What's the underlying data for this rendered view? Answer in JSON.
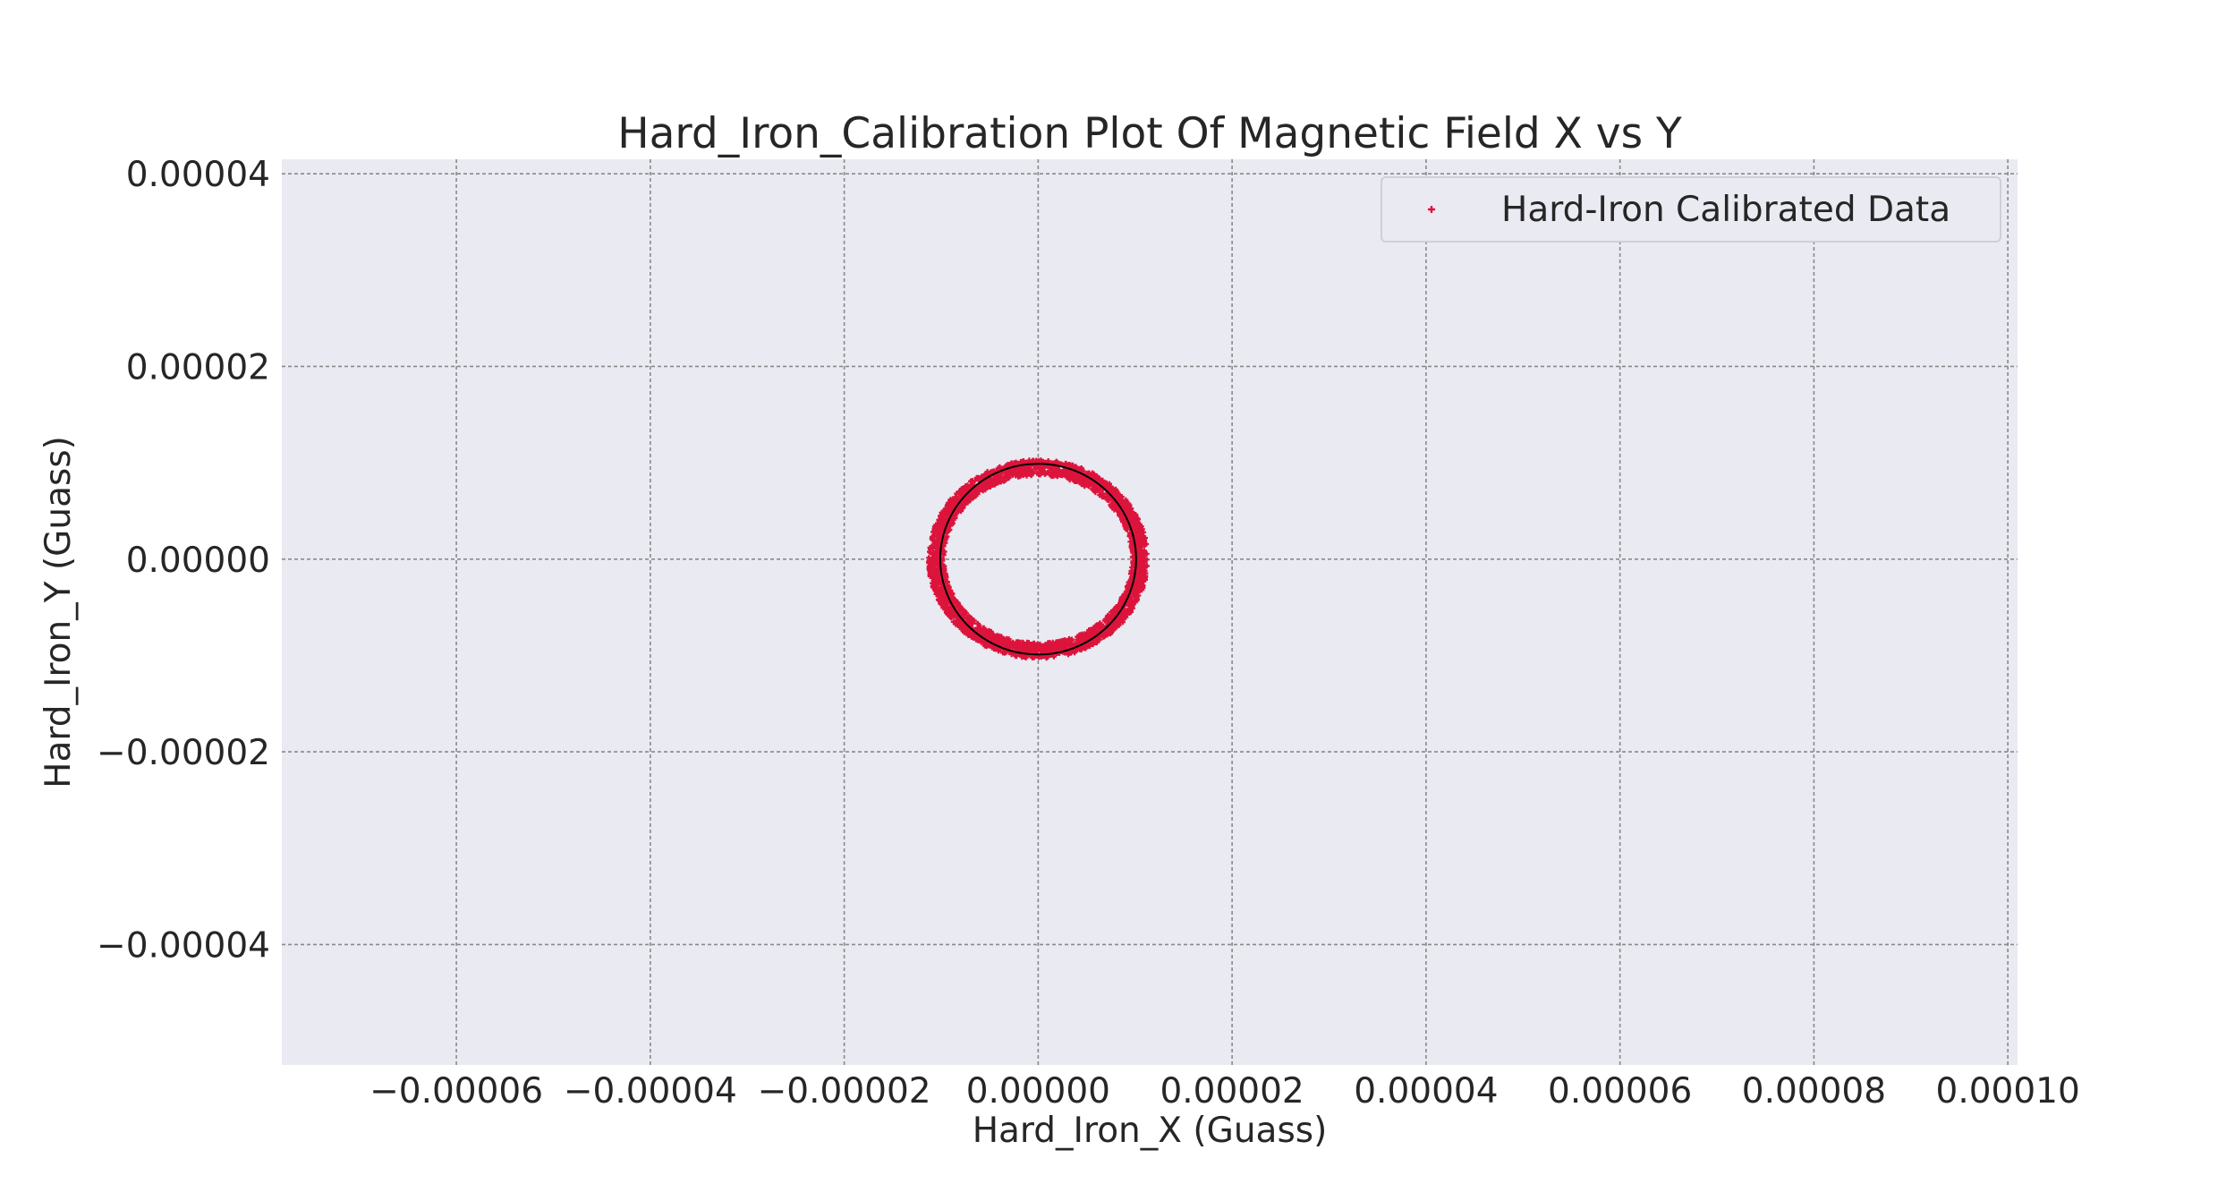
{
  "chart_data": {
    "type": "scatter",
    "title": "Hard_Iron_Calibration Plot Of Magnetic Field X vs Y",
    "xlabel": "Hard_Iron_X (Guass)",
    "ylabel": "Hard_Iron_Y (Guass)",
    "xlim": [
      -7.8e-05,
      0.000101
    ],
    "ylim": [
      -5.25e-05,
      4.15e-05
    ],
    "x_ticks": [
      -6e-05,
      -4e-05,
      -2e-05,
      0.0,
      2e-05,
      4e-05,
      6e-05,
      8e-05,
      0.0001
    ],
    "x_tick_labels": [
      "−0.00006",
      "−0.00004",
      "−0.00002",
      "0.00000",
      "0.00002",
      "0.00004",
      "0.00006",
      "0.00008",
      "0.00010"
    ],
    "y_ticks": [
      4e-05,
      2e-05,
      0.0,
      -2e-05,
      -4e-05
    ],
    "y_tick_labels": [
      "0.00004",
      "0.00002",
      "0.00000",
      "−0.00002",
      "−0.00004"
    ],
    "grid": true,
    "legend_position": "top-right",
    "series": [
      {
        "name": "Hard-Iron Calibrated Data",
        "marker": "+",
        "color": "#dc143c",
        "shape": "ring",
        "center": [
          0.0,
          0.0
        ],
        "radius_x": 1.05e-05,
        "radius_y": 9.5e-06,
        "spread": 8e-07
      }
    ],
    "fit_circle": {
      "color": "#000000",
      "center": [
        0.0,
        0.0
      ],
      "radius_x": 1.01e-05,
      "radius_y": 9.9e-06
    }
  },
  "colors": {
    "plot_background": "#eaeaf2",
    "grid": "#8a8a8a",
    "scatter": "#dc143c",
    "circle": "#000000"
  }
}
